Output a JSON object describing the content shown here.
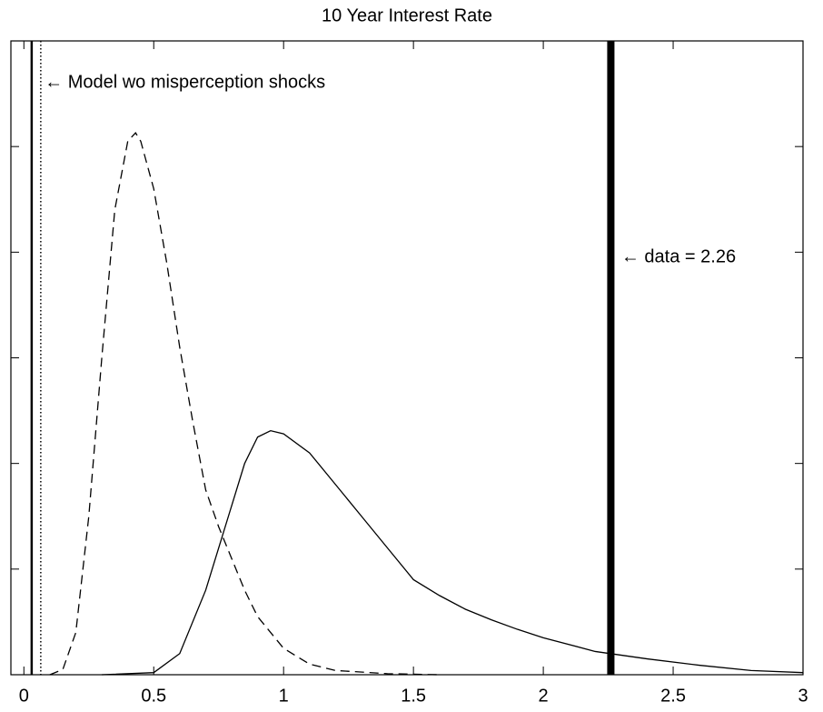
{
  "chart_data": {
    "type": "line",
    "title": "10 Year Interest Rate",
    "xlim": [
      -0.05,
      3
    ],
    "xticks": [
      0,
      0.5,
      1,
      1.5,
      2,
      2.5,
      3
    ],
    "ylim": [
      0,
      6
    ],
    "yticks": [
      0,
      1,
      2,
      3,
      4,
      5,
      6
    ],
    "show_ytick_labels": false,
    "series": [
      {
        "color": "#000000",
        "style": "dashed",
        "x": [
          0.1,
          0.15,
          0.2,
          0.25,
          0.3,
          0.35,
          0.4,
          0.43,
          0.45,
          0.5,
          0.55,
          0.6,
          0.65,
          0.7,
          0.75,
          0.8,
          0.85,
          0.9,
          1.0,
          1.1,
          1.2,
          1.4,
          1.6
        ],
        "values": [
          0,
          0.05,
          0.4,
          1.5,
          3.0,
          4.4,
          5.05,
          5.13,
          5.05,
          4.6,
          3.9,
          3.1,
          2.4,
          1.75,
          1.4,
          1.1,
          0.8,
          0.55,
          0.25,
          0.1,
          0.04,
          0.01,
          0
        ]
      },
      {
        "color": "#000000",
        "style": "solid",
        "x": [
          0.3,
          0.5,
          0.6,
          0.7,
          0.8,
          0.85,
          0.9,
          0.95,
          1.0,
          1.1,
          1.2,
          1.3,
          1.4,
          1.5,
          1.6,
          1.7,
          1.8,
          1.9,
          2.0,
          2.2,
          2.4,
          2.6,
          2.8,
          3.0
        ],
        "values": [
          0,
          0.02,
          0.2,
          0.8,
          1.6,
          2.0,
          2.25,
          2.31,
          2.28,
          2.1,
          1.8,
          1.5,
          1.2,
          0.9,
          0.75,
          0.62,
          0.52,
          0.43,
          0.35,
          0.22,
          0.15,
          0.09,
          0.04,
          0.02
        ]
      }
    ],
    "vlines": [
      {
        "x": 0.03,
        "style": "solid"
      },
      {
        "x": 0.065,
        "style": "dotted"
      },
      {
        "x": 2.26,
        "style": "thick"
      }
    ],
    "annotations": [
      {
        "text": "← Model wo misperception shocks",
        "x": 0.08,
        "y": 5.6
      },
      {
        "text": "← data = 2.26",
        "x": 2.3,
        "y": 3.95
      }
    ]
  }
}
